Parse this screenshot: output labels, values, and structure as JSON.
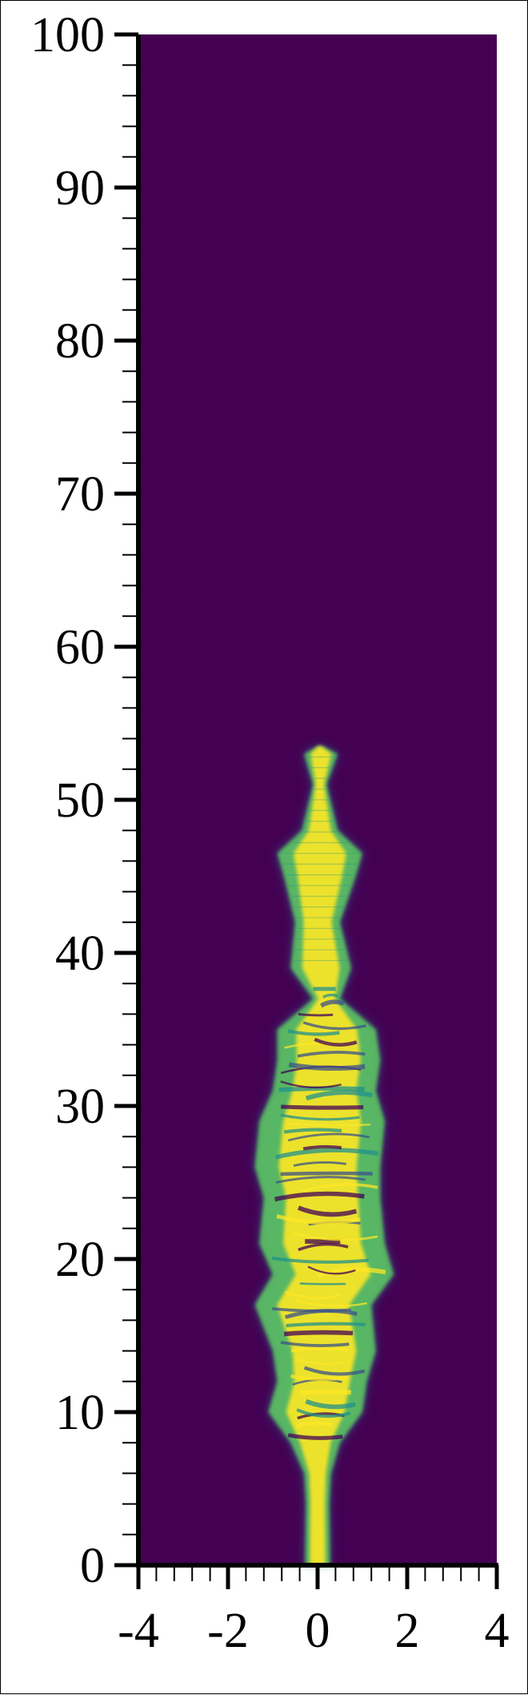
{
  "chart_data": {
    "type": "heatmap",
    "title": "",
    "xlabel": "",
    "ylabel": "",
    "xlim": [
      -4,
      4
    ],
    "ylim": [
      0,
      100
    ],
    "x_ticks": [
      -4,
      -2,
      0,
      2,
      4
    ],
    "x_tick_labels": [
      "-4",
      "-2",
      "0",
      "2",
      "4"
    ],
    "y_ticks": [
      0,
      10,
      20,
      30,
      40,
      50,
      60,
      70,
      80,
      90,
      100
    ],
    "y_tick_labels": [
      "0",
      "10",
      "20",
      "30",
      "40",
      "50",
      "60",
      "70",
      "80",
      "90",
      "100"
    ],
    "x_minor_step": 0.4,
    "y_minor_step": 2,
    "colormap": "viridis",
    "colors": {
      "background": "#440154",
      "low": "#3b528b",
      "mid": "#21918c",
      "high": "#5ec962",
      "peak": "#fde725"
    },
    "grid": false,
    "plume_profile": [
      {
        "y": 0,
        "left": -0.28,
        "right": 0.28
      },
      {
        "y": 4,
        "left": -0.26,
        "right": 0.26
      },
      {
        "y": 6,
        "left": -0.3,
        "right": 0.3
      },
      {
        "y": 8,
        "left": -0.6,
        "right": 0.5
      },
      {
        "y": 10,
        "left": -1.1,
        "right": 1.0
      },
      {
        "y": 12,
        "left": -0.9,
        "right": 1.1
      },
      {
        "y": 14,
        "left": -1.0,
        "right": 1.3
      },
      {
        "y": 17,
        "left": -1.4,
        "right": 1.2
      },
      {
        "y": 19,
        "left": -1.0,
        "right": 1.7
      },
      {
        "y": 21,
        "left": -1.3,
        "right": 1.5
      },
      {
        "y": 24,
        "left": -1.2,
        "right": 1.4
      },
      {
        "y": 26,
        "left": -1.4,
        "right": 1.4
      },
      {
        "y": 29,
        "left": -1.3,
        "right": 1.5
      },
      {
        "y": 31,
        "left": -1.0,
        "right": 1.3
      },
      {
        "y": 33,
        "left": -0.9,
        "right": 1.4
      },
      {
        "y": 35,
        "left": -0.9,
        "right": 1.3
      },
      {
        "y": 37,
        "left": -0.1,
        "right": 0.5
      },
      {
        "y": 39,
        "left": -0.6,
        "right": 0.75
      },
      {
        "y": 42,
        "left": -0.5,
        "right": 0.5
      },
      {
        "y": 45,
        "left": -0.75,
        "right": 0.85
      },
      {
        "y": 46.5,
        "left": -0.9,
        "right": 1.0
      },
      {
        "y": 48,
        "left": -0.35,
        "right": 0.45
      },
      {
        "y": 51,
        "left": -0.1,
        "right": 0.2
      },
      {
        "y": 53,
        "left": -0.3,
        "right": 0.45
      },
      {
        "y": 53.5,
        "left": 0,
        "right": 0.1
      }
    ]
  }
}
